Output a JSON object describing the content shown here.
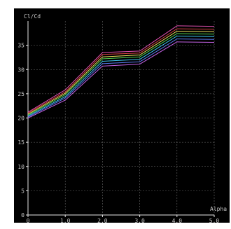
{
  "chart_data": {
    "type": "line",
    "ylabel": "Cl/Cd",
    "xlabel": "Alpha",
    "xlim": [
      0,
      5
    ],
    "ylim": [
      0,
      40
    ],
    "x_ticks": [
      "0",
      "1.0",
      "2.0",
      "3.0",
      "4.0",
      "5.0"
    ],
    "y_ticks": [
      "0",
      "5",
      "10",
      "15",
      "20",
      "25",
      "30",
      "35"
    ],
    "grid": true,
    "x": [
      0,
      1.0,
      2.0,
      3.0,
      4.0,
      5.0
    ],
    "series": [
      {
        "values": [
          21.2,
          25.8,
          33.5,
          33.8,
          39.0,
          38.9
        ],
        "color": "#e04fb0"
      },
      {
        "values": [
          21.0,
          25.4,
          33.1,
          33.4,
          38.4,
          38.3
        ],
        "color": "#d24040"
      },
      {
        "values": [
          20.8,
          25.1,
          32.6,
          33.0,
          37.9,
          37.8
        ],
        "color": "#f0e060"
      },
      {
        "values": [
          20.6,
          24.8,
          32.2,
          32.6,
          37.4,
          37.3
        ],
        "color": "#50d050"
      },
      {
        "values": [
          20.4,
          24.4,
          31.7,
          32.1,
          36.9,
          36.8
        ],
        "color": "#40c8f0"
      },
      {
        "values": [
          20.2,
          24.1,
          31.2,
          31.6,
          36.3,
          36.2
        ],
        "color": "#5a7af0"
      },
      {
        "values": [
          20.0,
          23.7,
          30.7,
          31.1,
          35.7,
          35.6
        ],
        "color": "#c060e0"
      }
    ]
  }
}
